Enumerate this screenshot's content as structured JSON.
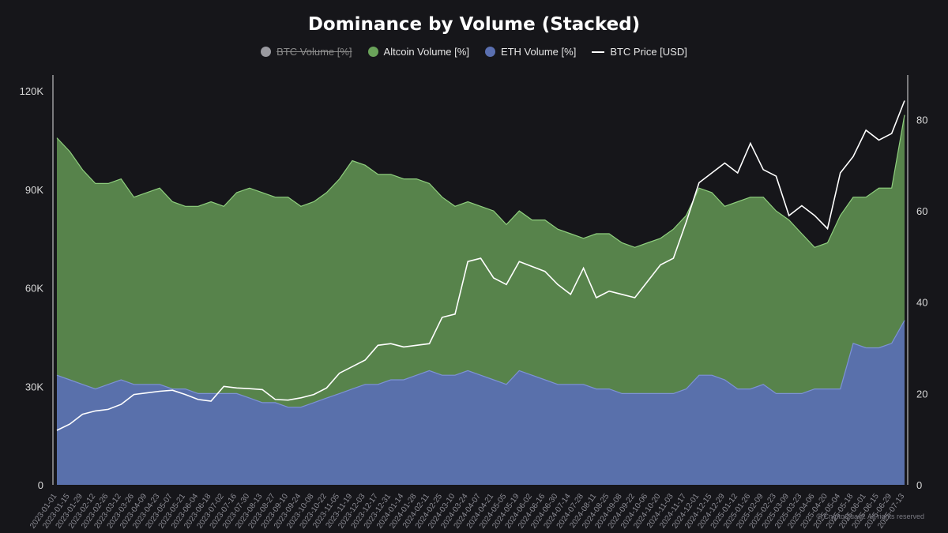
{
  "title": "Dominance by Volume (Stacked)",
  "legend": [
    {
      "label": "BTC Volume [%]",
      "color": "#9a9aa0",
      "marker": "dot",
      "disabled": true
    },
    {
      "label": "Altcoin Volume [%]",
      "color": "#6aa35a",
      "marker": "dot",
      "disabled": false
    },
    {
      "label": "ETH Volume [%]",
      "color": "#5a6fb0",
      "marker": "dot",
      "disabled": false
    },
    {
      "label": "BTC Price [USD]",
      "color": "#ffffff",
      "marker": "line",
      "disabled": false
    }
  ],
  "watermark": "© CryptoQuant. All rights reserved",
  "chart_data": {
    "type": "area",
    "title": "Dominance by Volume (Stacked)",
    "stacked": true,
    "y_left": {
      "label": "",
      "range": [
        0,
        120000
      ],
      "ticks": [
        "0",
        "30K",
        "60K",
        "90K",
        "120K"
      ],
      "tick_values": [
        0,
        30000,
        60000,
        90000,
        120000
      ]
    },
    "y_right": {
      "label": "",
      "range": [
        0,
        86.3
      ],
      "ticks": [
        "0",
        "20",
        "40",
        "60",
        "80"
      ],
      "tick_values": [
        0,
        20,
        40,
        60,
        80
      ]
    },
    "x": [
      "2023-01-01",
      "2023-01-15",
      "2023-01-29",
      "2023-02-12",
      "2023-02-26",
      "2023-03-12",
      "2023-03-26",
      "2023-04-09",
      "2023-04-23",
      "2023-05-07",
      "2023-05-21",
      "2023-06-04",
      "2023-06-18",
      "2023-07-02",
      "2023-07-16",
      "2023-07-30",
      "2023-08-13",
      "2023-08-27",
      "2023-09-10",
      "2023-09-24",
      "2023-10-08",
      "2023-10-22",
      "2023-11-05",
      "2023-11-19",
      "2023-12-03",
      "2023-12-17",
      "2023-12-31",
      "2024-01-14",
      "2024-01-28",
      "2024-02-11",
      "2024-02-25",
      "2024-03-10",
      "2024-03-24",
      "2024-04-07",
      "2024-04-21",
      "2024-05-05",
      "2024-05-19",
      "2024-06-02",
      "2024-06-16",
      "2024-06-30",
      "2024-07-14",
      "2024-07-28",
      "2024-08-11",
      "2024-08-25",
      "2024-09-08",
      "2024-09-22",
      "2024-10-06",
      "2024-10-20",
      "2024-11-03",
      "2024-11-17",
      "2024-12-01",
      "2024-12-15",
      "2024-12-29",
      "2025-01-12",
      "2025-01-26",
      "2025-02-09",
      "2025-02-23",
      "2025-03-09",
      "2025-03-23",
      "2025-04-06",
      "2025-04-20",
      "2025-05-04",
      "2025-05-18",
      "2025-06-01",
      "2025-06-15",
      "2025-06-29",
      "2025-07-13"
    ],
    "x_tick_labels": [
      "2023-01-01",
      "2023-01-15",
      "2023-01-29",
      "2023-02-12",
      "2023-02-26",
      "2023-03-12",
      "2023-03-26",
      "2023-04-09",
      "2023-04-23",
      "2023-05-07",
      "2023-05-21",
      "2023-06-04",
      "2023-06-18",
      "2023-07-02",
      "2023-07-16",
      "2023-07-30",
      "2023-08-13",
      "2023-08-27",
      "2023-09-10",
      "2023-09-24",
      "2023-10-08",
      "2023-10-22",
      "2023-11-05",
      "2023-11-19",
      "2023-12-03",
      "2023-12-17",
      "2023-12-31",
      "2024-01-14",
      "2024-01-28",
      "2024-02-11",
      "2024-02-25",
      "2024-03-10",
      "2024-03-24",
      "2024-04-07",
      "2024-04-21",
      "2024-05-05",
      "2024-05-19",
      "2024-06-02",
      "2024-06-16",
      "2024-06-30",
      "2024-07-14",
      "2024-07-28",
      "2024-08-11",
      "2024-08-25",
      "2024-09-08",
      "2024-09-22",
      "2024-10-06",
      "2024-10-20",
      "2024-11-03",
      "2024-11-17",
      "2024-12-01",
      "2024-12-15",
      "2024-12-29",
      "2025-01-12",
      "2025-01-26",
      "2025-02-09",
      "2025-02-23",
      "2025-03-09",
      "2025-03-23",
      "2025-04-06",
      "2025-04-20",
      "2025-05-04",
      "2025-05-18",
      "2025-06-01",
      "2025-06-15",
      "2025-06-29",
      "2025-07-13"
    ],
    "series": [
      {
        "name": "ETH Volume [%]",
        "axis": "right",
        "color": "#5a6fb0",
        "values": [
          24,
          23,
          22,
          21,
          22,
          23,
          22,
          22,
          22,
          21,
          21,
          20,
          20,
          20,
          20,
          19,
          18,
          18,
          17,
          17,
          18,
          19,
          20,
          21,
          22,
          22,
          23,
          23,
          24,
          25,
          24,
          24,
          25,
          24,
          23,
          22,
          25,
          24,
          23,
          22,
          22,
          22,
          21,
          21,
          20,
          20,
          20,
          20,
          20,
          21,
          24,
          24,
          23,
          21,
          21,
          22,
          20,
          20,
          20,
          21,
          21,
          21,
          31,
          30,
          30,
          31,
          36
        ]
      },
      {
        "name": "Altcoin Volume [%]",
        "axis": "right",
        "color": "#6aa35a",
        "values": [
          52,
          50,
          47,
          45,
          44,
          44,
          41,
          42,
          43,
          41,
          40,
          41,
          42,
          41,
          44,
          46,
          46,
          45,
          46,
          44,
          44,
          45,
          47,
          50,
          48,
          46,
          45,
          44,
          43,
          41,
          39,
          37,
          37,
          37,
          37,
          35,
          35,
          34,
          35,
          34,
          33,
          32,
          34,
          34,
          33,
          32,
          33,
          34,
          36,
          38,
          41,
          40,
          38,
          41,
          42,
          41,
          40,
          38,
          35,
          31,
          32,
          38,
          32,
          33,
          35,
          34,
          45
        ]
      },
      {
        "name": "BTC Price [USD]",
        "axis": "left",
        "color": "#ffffff",
        "values": [
          16600,
          18500,
          21500,
          22500,
          23000,
          24500,
          27500,
          28000,
          28500,
          28800,
          27500,
          26000,
          25500,
          30000,
          29500,
          29300,
          29000,
          26000,
          25800,
          26500,
          27500,
          29500,
          34000,
          36000,
          38000,
          42500,
          43000,
          42000,
          42500,
          43000,
          51000,
          52000,
          68000,
          69000,
          63000,
          61000,
          68000,
          66500,
          65000,
          61000,
          58000,
          66000,
          57000,
          59000,
          58000,
          57000,
          62000,
          67000,
          69000,
          80000,
          92000,
          95000,
          98000,
          95000,
          104000,
          96000,
          94000,
          82000,
          85000,
          82000,
          78000,
          95000,
          100000,
          108000,
          105000,
          107000,
          117000
        ]
      }
    ]
  }
}
